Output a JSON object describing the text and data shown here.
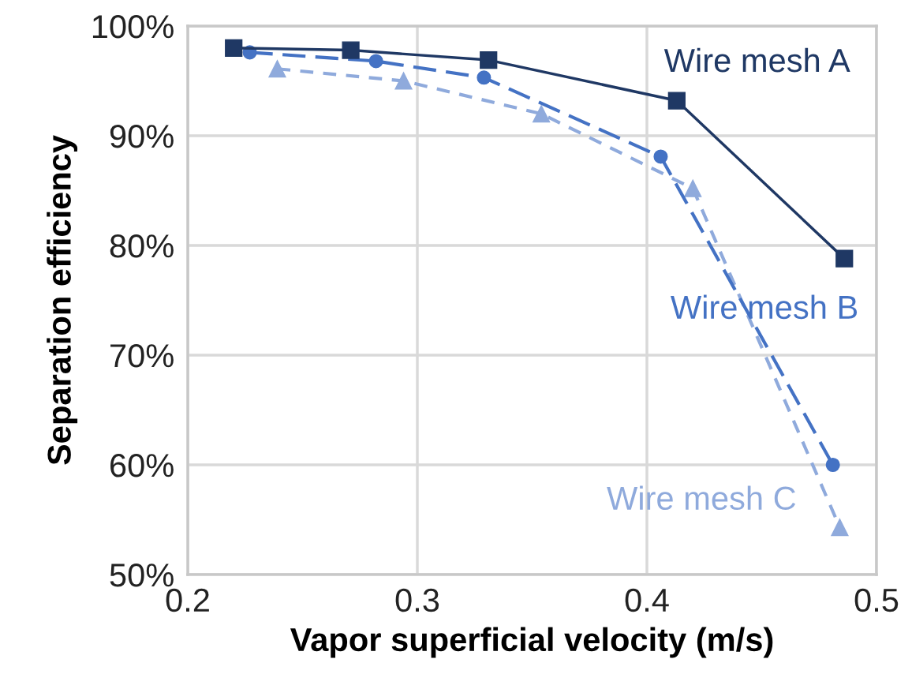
{
  "chart_data": {
    "type": "line",
    "xlabel": "Vapor superficial velocity (m/s)",
    "ylabel": "Separation efficiency",
    "xlim": [
      0.2,
      0.5
    ],
    "xticks": [
      0.2,
      0.3,
      0.4,
      0.5
    ],
    "ylim": [
      50,
      100
    ],
    "yticks": [
      {
        "value": 50,
        "label": "50%"
      },
      {
        "value": 60,
        "label": "60%"
      },
      {
        "value": 70,
        "label": "70%"
      },
      {
        "value": 80,
        "label": "80%"
      },
      {
        "value": 90,
        "label": "90%"
      },
      {
        "value": 100,
        "label": "100%"
      }
    ],
    "grid": true,
    "legend": false,
    "series": [
      {
        "name": "Wire mesh A",
        "color": "#1f3864",
        "marker": "square",
        "line_style": "solid",
        "x": [
          0.22,
          0.271,
          0.331,
          0.413,
          0.486
        ],
        "values": [
          98.0,
          97.8,
          96.9,
          93.2,
          78.8
        ]
      },
      {
        "name": "Wire mesh B",
        "color": "#4472c4",
        "marker": "circle",
        "line_style": "dashed",
        "x": [
          0.227,
          0.282,
          0.329,
          0.406,
          0.481
        ],
        "values": [
          97.6,
          96.8,
          95.3,
          88.1,
          60.0
        ]
      },
      {
        "name": "Wire mesh C",
        "color": "#8faadc",
        "marker": "triangle",
        "line_style": "dotted",
        "x": [
          0.239,
          0.294,
          0.354,
          0.42,
          0.484
        ],
        "values": [
          96.1,
          95.0,
          92.0,
          85.2,
          54.3
        ]
      }
    ]
  }
}
